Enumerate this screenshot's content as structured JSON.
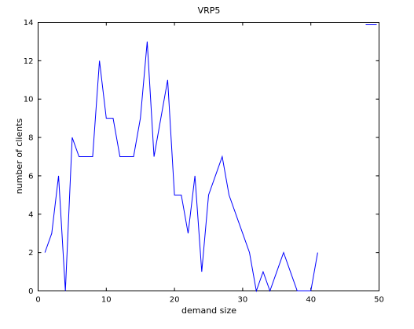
{
  "chart_data": {
    "type": "line",
    "title": "VRP5",
    "xlabel": "demand size",
    "ylabel": "number of clients",
    "xlim": [
      0,
      50
    ],
    "ylim": [
      0,
      14
    ],
    "xticks": [
      0,
      10,
      20,
      30,
      40,
      50
    ],
    "yticks": [
      0,
      2,
      4,
      6,
      8,
      10,
      12,
      14
    ],
    "grid": false,
    "legend": "top-right",
    "series": [
      {
        "color": "#0000ff",
        "x": [
          1,
          2,
          3,
          4,
          5,
          6,
          7,
          8,
          9,
          10,
          11,
          12,
          13,
          14,
          15,
          16,
          17,
          18,
          19,
          20,
          21,
          22,
          23,
          24,
          25,
          26,
          27,
          28,
          29,
          30,
          31,
          32,
          33,
          34,
          35,
          36,
          37,
          38,
          39,
          40,
          41
        ],
        "y": [
          2,
          3,
          6,
          0,
          8,
          7,
          7,
          7,
          12,
          9,
          9,
          7,
          7,
          7,
          9,
          13,
          7,
          9,
          11,
          5,
          5,
          3,
          6,
          1,
          5,
          6,
          7,
          5,
          4,
          3,
          2,
          0,
          1,
          0,
          1,
          2,
          1,
          0,
          0,
          0,
          2
        ]
      }
    ]
  }
}
